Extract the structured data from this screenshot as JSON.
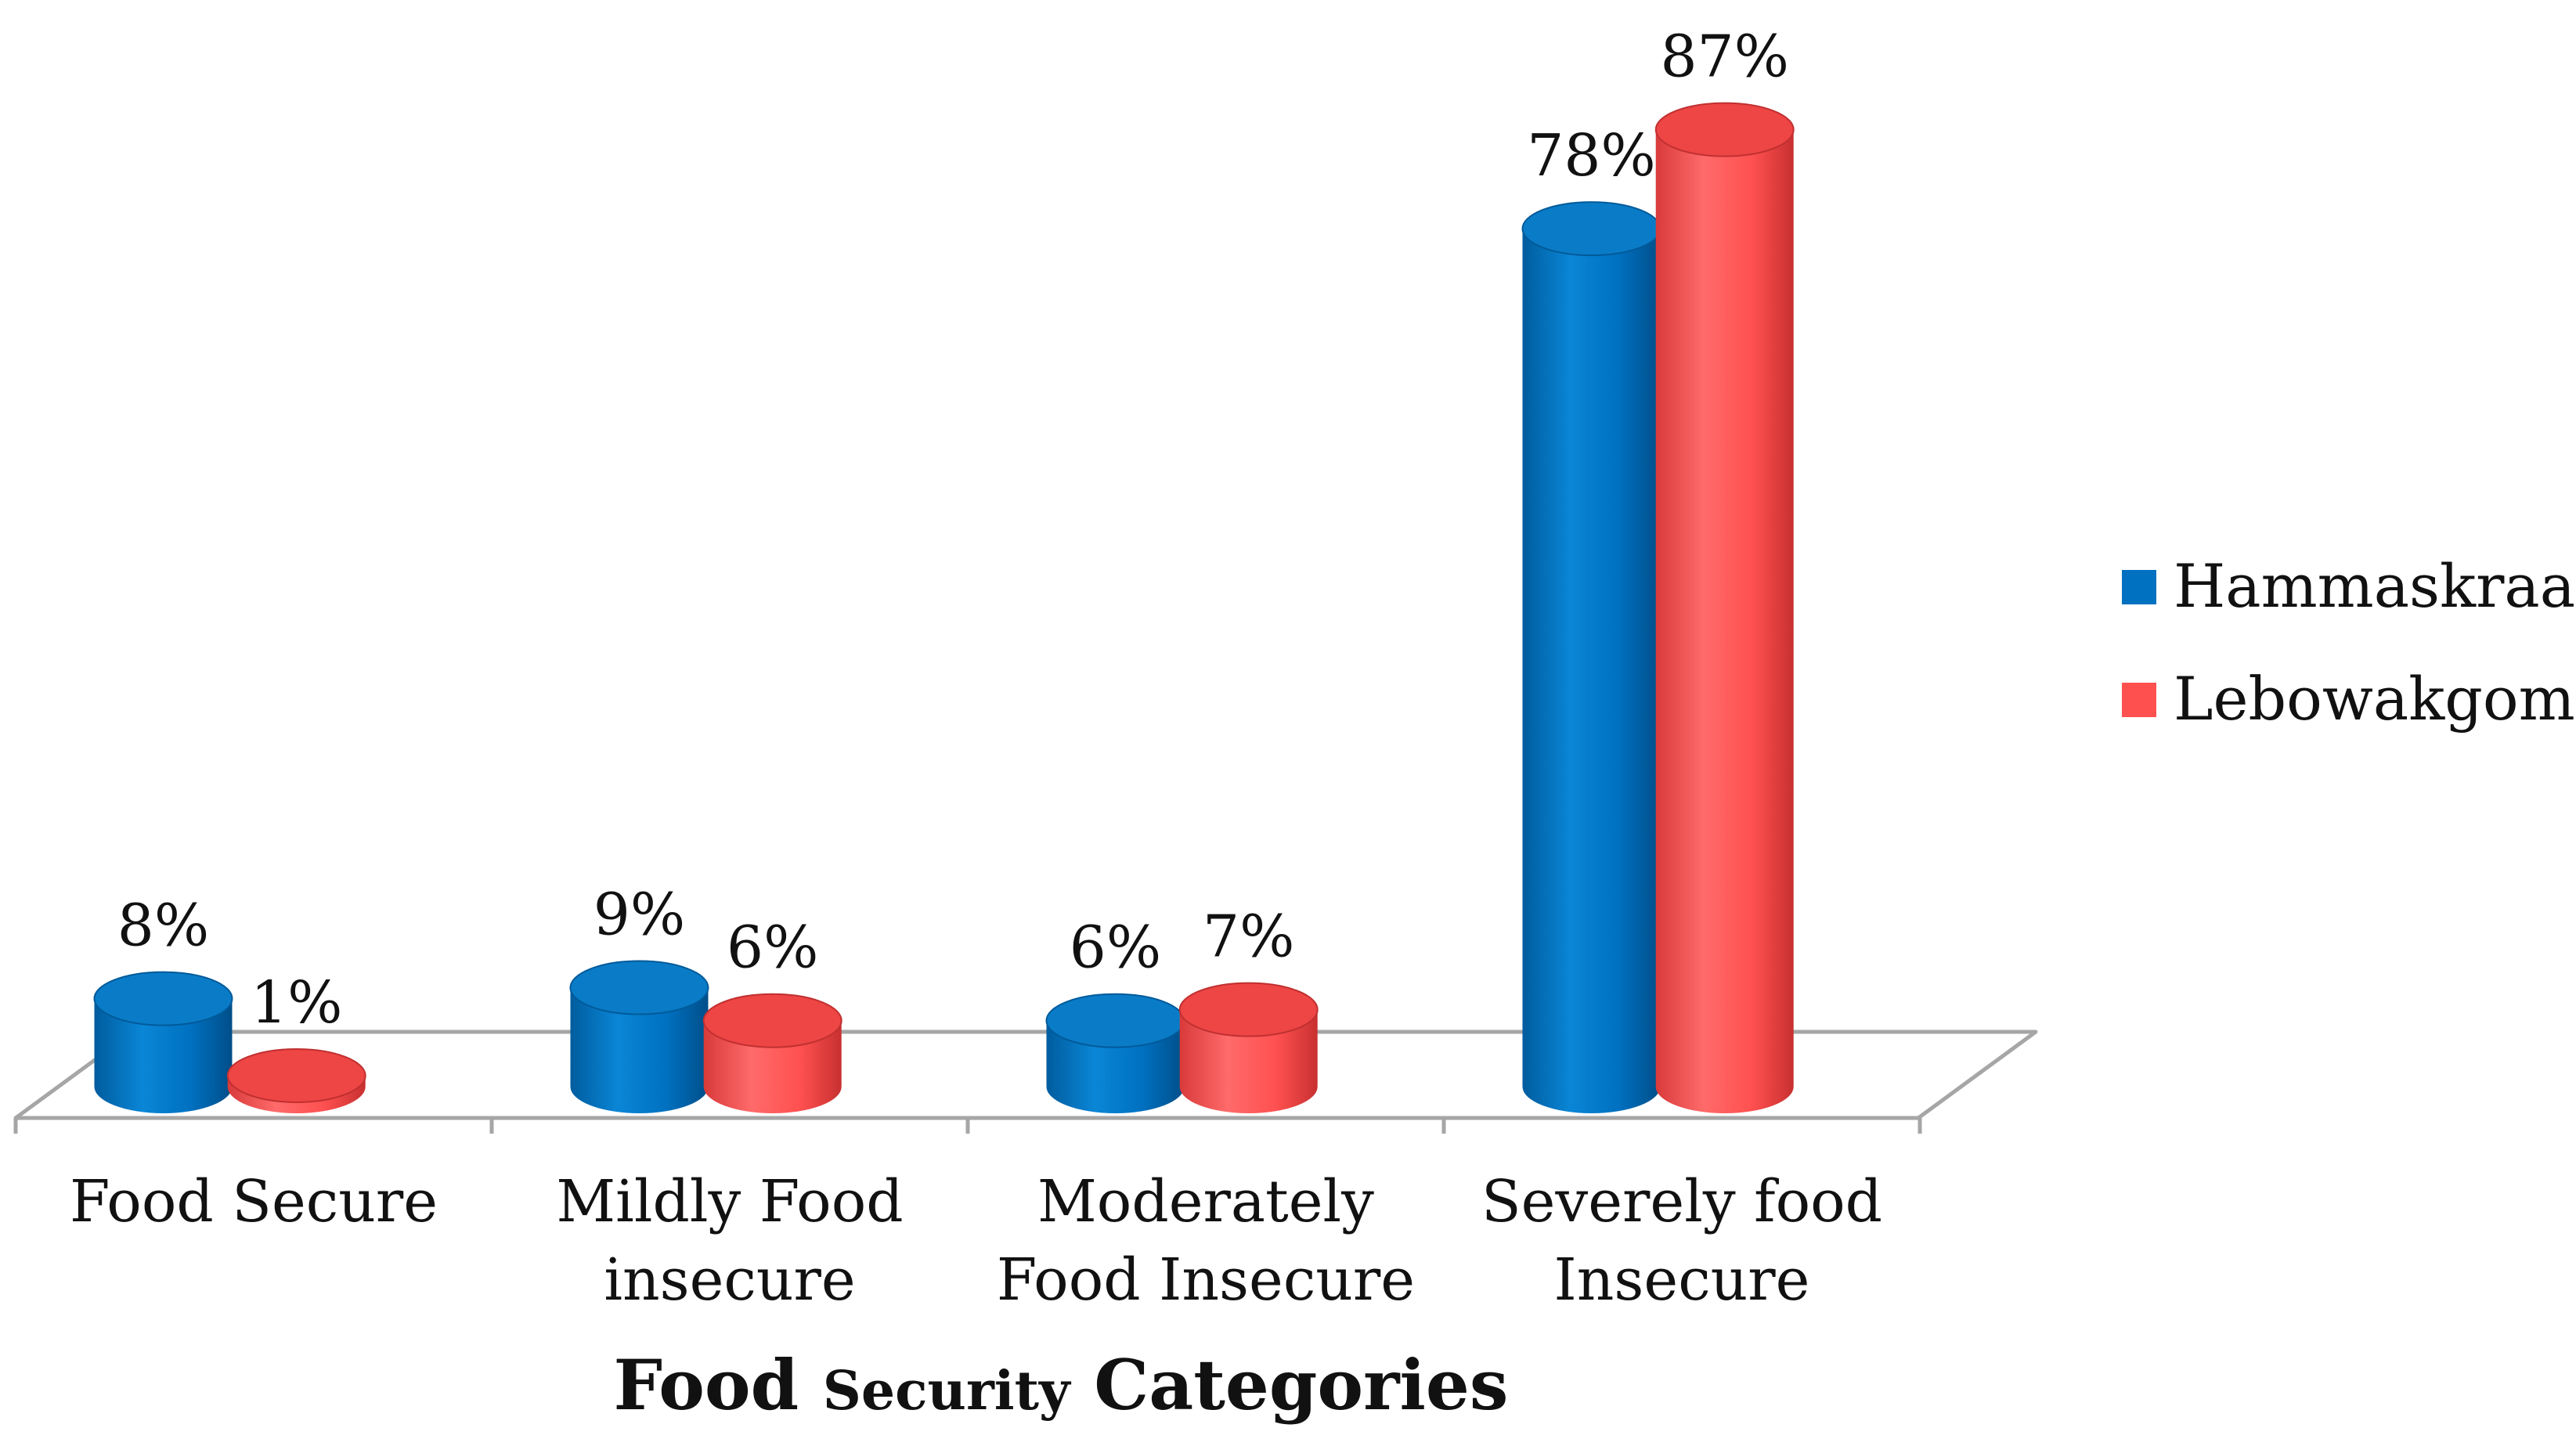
{
  "chart_data": {
    "type": "bar",
    "title": "",
    "categories": [
      [
        "Food Secure"
      ],
      [
        "Mildly Food",
        "insecure"
      ],
      [
        "Moderately",
        "Food Insecure"
      ],
      [
        "Severely food",
        "Insecure"
      ]
    ],
    "series": [
      {
        "name": "Hammaskraal",
        "color": "#0070C0",
        "values": [
          8,
          9,
          6,
          78
        ],
        "labels": [
          "8%",
          "9%",
          "6%",
          "78%"
        ]
      },
      {
        "name": "Lebowakgomo",
        "color": "#FF5050",
        "values": [
          1,
          6,
          7,
          87
        ],
        "labels": [
          "1%",
          "6%",
          "7%",
          "87%"
        ]
      }
    ],
    "xlabel": {
      "part1": "Food",
      "part2": "Security",
      "part3": "Categories"
    },
    "ylabel": "",
    "ylim": [
      0,
      100
    ],
    "legend_position": "right"
  }
}
